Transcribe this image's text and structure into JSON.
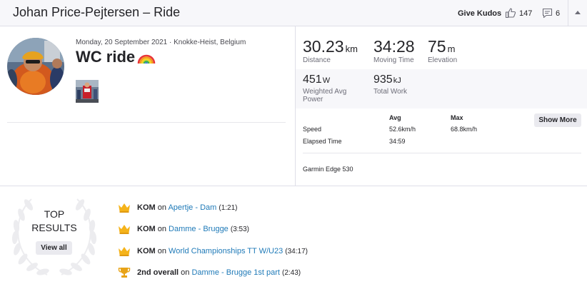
{
  "header": {
    "title": "Johan Price-Pejtersen – Ride",
    "give_kudos": "Give Kudos",
    "kudos_count": "147",
    "comment_count": "6"
  },
  "activity": {
    "date_location": "Monday, 20 September 2021 · Knokke-Heist, Belgium",
    "title": "WC ride"
  },
  "stats": {
    "distance": {
      "value": "30.23",
      "unit": "km",
      "label": "Distance"
    },
    "moving_time": {
      "value": "34:28",
      "label": "Moving Time"
    },
    "elevation": {
      "value": "75",
      "unit": "m",
      "label": "Elevation"
    },
    "power": {
      "value": "451",
      "unit": "W",
      "label_line1": "Weighted Avg",
      "label_line2": "Power"
    },
    "work": {
      "value": "935",
      "unit": "kJ",
      "label": "Total Work"
    }
  },
  "table": {
    "avg_header": "Avg",
    "max_header": "Max",
    "rows": [
      {
        "label": "Speed",
        "avg": "52.6km/h",
        "max": "68.8km/h"
      },
      {
        "label": "Elapsed Time",
        "avg": "34:59",
        "max": ""
      }
    ],
    "show_more": "Show More"
  },
  "device": "Garmin Edge 530",
  "top_results": {
    "title_line1": "TOP",
    "title_line2": "RESULTS",
    "view_all": "View all",
    "items": [
      {
        "type": "KOM",
        "connector": "on",
        "segment": "Apertje - Dam",
        "time": "(1:21)",
        "icon": "crown-icon"
      },
      {
        "type": "KOM",
        "connector": "on",
        "segment": "Damme - Brugge",
        "time": "(3:53)",
        "icon": "crown-icon"
      },
      {
        "type": "KOM",
        "connector": "on",
        "segment": "World Championships TT W/U23",
        "time": "(34:17)",
        "icon": "crown-icon"
      },
      {
        "type": "2nd overall",
        "connector": "on",
        "segment": "Damme - Brugge 1st part",
        "time": "(2:43)",
        "icon": "trophy-icon"
      }
    ]
  },
  "colors": {
    "link": "#1f7ab8",
    "crown": "#f5b31a",
    "trophy": "#e8a317"
  }
}
